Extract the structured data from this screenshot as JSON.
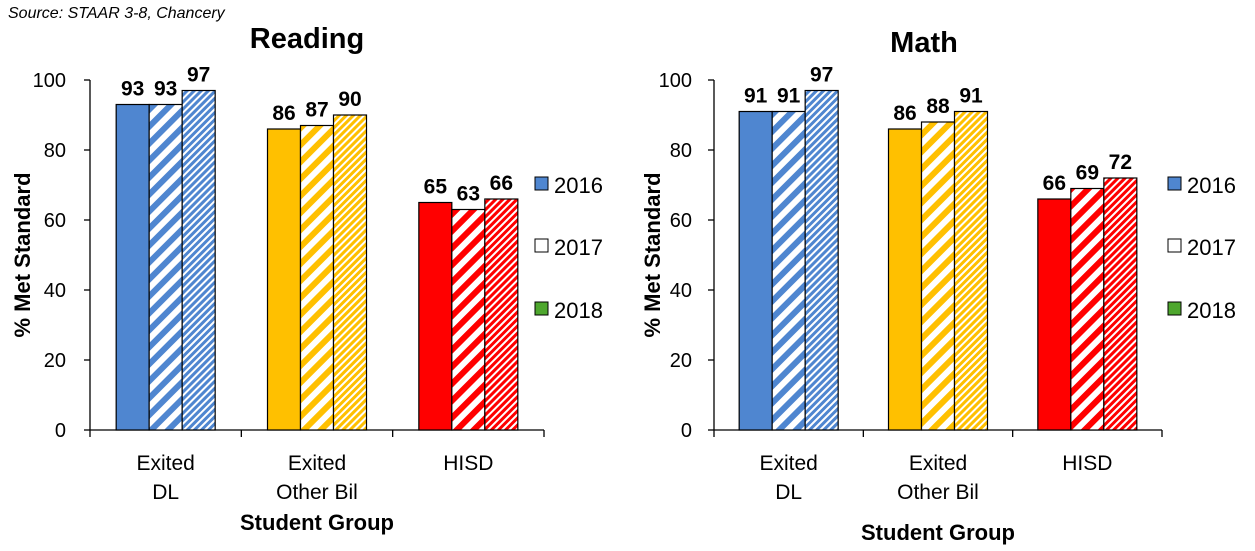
{
  "source_note": "Source: STAAR 3-8, Chancery",
  "chart_data": [
    {
      "type": "bar",
      "title": "Reading",
      "xlabel": "Student Group",
      "ylabel": "% Met Standard",
      "ylim": [
        0,
        100
      ],
      "yticks": [
        0,
        20,
        40,
        60,
        80,
        100
      ],
      "grid": false,
      "legend_position": "right",
      "categories": [
        [
          "Exited",
          "DL"
        ],
        [
          "Exited",
          "Other Bil"
        ],
        [
          "HISD"
        ]
      ],
      "series": [
        {
          "name": "2016",
          "values": [
            93,
            86,
            65
          ]
        },
        {
          "name": "2017",
          "values": [
            93,
            87,
            63
          ]
        },
        {
          "name": "2018",
          "values": [
            97,
            90,
            66
          ]
        }
      ]
    },
    {
      "type": "bar",
      "title": "Math",
      "xlabel": "Student Group",
      "ylabel": "% Met Standard",
      "ylim": [
        0,
        100
      ],
      "yticks": [
        0,
        20,
        40,
        60,
        80,
        100
      ],
      "grid": false,
      "legend_position": "right",
      "categories": [
        [
          "Exited",
          "DL"
        ],
        [
          "Exited",
          "Other Bil"
        ],
        [
          "HISD"
        ]
      ],
      "series": [
        {
          "name": "2016",
          "values": [
            91,
            86,
            66
          ]
        },
        {
          "name": "2017",
          "values": [
            91,
            88,
            69
          ]
        },
        {
          "name": "2018",
          "values": [
            97,
            91,
            72
          ]
        }
      ]
    }
  ],
  "colors": {
    "category": [
      "#4f86d0",
      "#ffc000",
      "#ff0000"
    ],
    "legend_swatch": [
      "#4f86d0",
      "#ffffff",
      "#4ea72e"
    ],
    "axis": "#000000"
  }
}
